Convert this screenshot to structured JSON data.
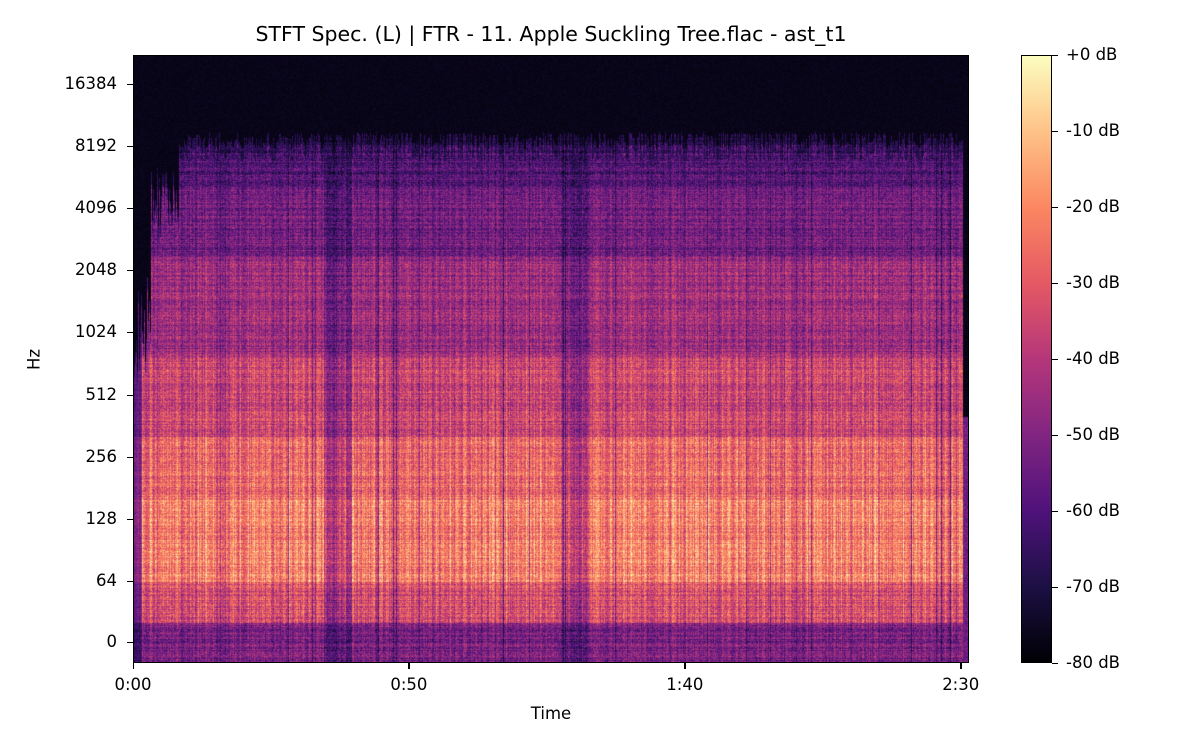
{
  "chart_data": {
    "type": "heatmap",
    "subtype": "spectrogram",
    "title": "STFT Spec. (L) | FTR - 11. Apple Suckling Tree.flac - ast_t1",
    "xlabel": "Time",
    "ylabel": "Hz",
    "x_ticks": [
      {
        "label": "0:00",
        "seconds": 0
      },
      {
        "label": "0:50",
        "seconds": 50
      },
      {
        "label": "1:40",
        "seconds": 100
      },
      {
        "label": "2:30",
        "seconds": 150
      }
    ],
    "x_range_seconds": [
      0,
      151.5
    ],
    "y_scale": "log2",
    "y_ticks": [
      "16384",
      "8192",
      "4096",
      "2048",
      "1024",
      "512",
      "256",
      "128",
      "64",
      "0"
    ],
    "y_range_hz": [
      0,
      24000
    ],
    "colorbar": {
      "label_format": "%+2.0f dB",
      "ticks": [
        "+0 dB",
        "-10 dB",
        "-20 dB",
        "-30 dB",
        "-40 dB",
        "-50 dB",
        "-60 dB",
        "-70 dB",
        "-80 dB"
      ],
      "range_db": [
        -80,
        0
      ],
      "colormap": "magma"
    },
    "observations": {
      "energy_cutoff_hz": 9000,
      "strongest_band_hz": [
        64,
        250
      ],
      "strongest_level_db": -5,
      "track_end_seconds": 150.5,
      "quiet_dips_seconds": [
        37,
        80
      ]
    }
  },
  "colormap_stops": [
    "#000004",
    "#1c1044",
    "#4f127b",
    "#812581",
    "#b5367a",
    "#e55964",
    "#fb8761",
    "#fec287",
    "#fcfdbf"
  ]
}
